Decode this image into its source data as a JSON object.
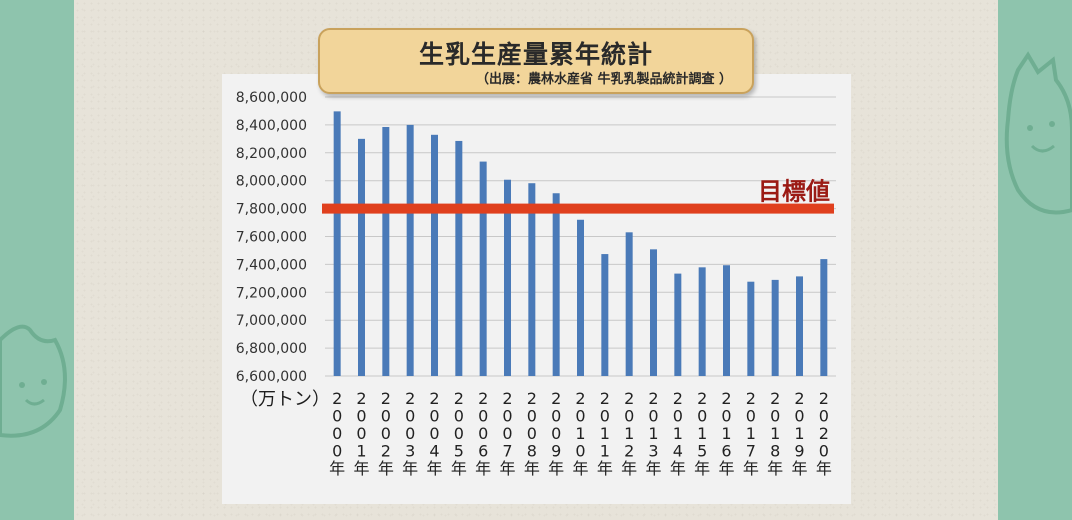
{
  "title": "生乳生産量累年統計",
  "source": "（出展：農林水産省 牛乳乳製品統計調査 ）",
  "unit_label": "（万トン）",
  "target_label": "目標値",
  "colors": {
    "bar": "#4a7ab8",
    "target_line": "#e0401e",
    "target_text": "#9b1a14",
    "side": "#8ec4ad",
    "banner": "#f2d59a"
  },
  "chart_data": {
    "type": "bar",
    "categories": [
      "2000年",
      "2001年",
      "2002年",
      "2003年",
      "2004年",
      "2005年",
      "2006年",
      "2007年",
      "2008年",
      "2009年",
      "2010年",
      "2011年",
      "2012年",
      "2013年",
      "2014年",
      "2015年",
      "2016年",
      "2017年",
      "2018年",
      "2019年",
      "2020年"
    ],
    "values": [
      8497000,
      8300000,
      8385000,
      8400000,
      8329000,
      8285000,
      8137000,
      8007000,
      7982000,
      7910000,
      7720000,
      7474000,
      7630000,
      7508000,
      7334000,
      7379000,
      7394000,
      7276000,
      7289000,
      7314000,
      7438000
    ],
    "target": 7800000,
    "ylim": [
      6600000,
      8600000
    ],
    "yticks": [
      "8,600,000",
      "8,400,000",
      "8,200,000",
      "8,000,000",
      "7,800,000",
      "7,600,000",
      "7,400,000",
      "7,200,000",
      "7,000,000",
      "6,800,000",
      "6,600,000"
    ],
    "ytick_values": [
      8600000,
      8400000,
      8200000,
      8000000,
      7800000,
      7600000,
      7400000,
      7200000,
      7000000,
      6800000,
      6600000
    ],
    "grid": true
  }
}
